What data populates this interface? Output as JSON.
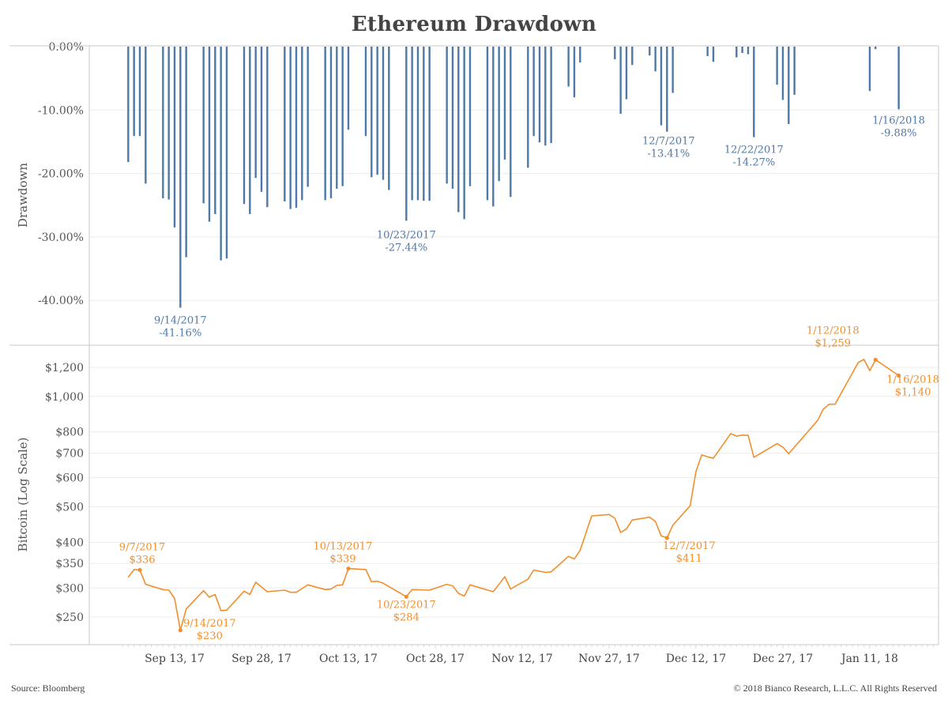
{
  "title": "Ethereum Drawdown",
  "footer": {
    "source": "Source: Bloomberg",
    "copyright": "© 2018 Bianco Research, L.L.C. All Rights Reserved"
  },
  "chart_data": [
    {
      "type": "bar",
      "ylabel": "Drawdown",
      "ylim": [
        -47,
        0
      ],
      "yticks": [
        "0.00%",
        "-10.00%",
        "-20.00%",
        "-30.00%",
        "-40.00%"
      ],
      "ytick_values": [
        0,
        -10,
        -20,
        -30,
        -40
      ],
      "color": "#4e79a7",
      "grid": true,
      "bars": [
        [
          "2017-09-05",
          -18.2
        ],
        [
          "2017-09-06",
          -14.1
        ],
        [
          "2017-09-07",
          -14.1
        ],
        [
          "2017-09-08",
          -21.6
        ],
        [
          "2017-09-11",
          -23.9
        ],
        [
          "2017-09-12",
          -24.1
        ],
        [
          "2017-09-13",
          -28.5
        ],
        [
          "2017-09-14",
          -41.16
        ],
        [
          "2017-09-15",
          -33.2
        ],
        [
          "2017-09-18",
          -24.7
        ],
        [
          "2017-09-19",
          -27.6
        ],
        [
          "2017-09-20",
          -26.4
        ],
        [
          "2017-09-21",
          -33.7
        ],
        [
          "2017-09-22",
          -33.4
        ],
        [
          "2017-09-25",
          -24.8
        ],
        [
          "2017-09-26",
          -26.4
        ],
        [
          "2017-09-27",
          -20.7
        ],
        [
          "2017-09-28",
          -22.9
        ],
        [
          "2017-09-29",
          -25.3
        ],
        [
          "2017-10-02",
          -24.4
        ],
        [
          "2017-10-03",
          -25.6
        ],
        [
          "2017-10-04",
          -25.4
        ],
        [
          "2017-10-05",
          -24.2
        ],
        [
          "2017-10-06",
          -22.1
        ],
        [
          "2017-10-09",
          -24.2
        ],
        [
          "2017-10-10",
          -23.9
        ],
        [
          "2017-10-11",
          -22.4
        ],
        [
          "2017-10-12",
          -22.0
        ],
        [
          "2017-10-13",
          -13.1
        ],
        [
          "2017-10-16",
          -14.1
        ],
        [
          "2017-10-17",
          -20.6
        ],
        [
          "2017-10-18",
          -20.2
        ],
        [
          "2017-10-19",
          -21.0
        ],
        [
          "2017-10-20",
          -22.6
        ],
        [
          "2017-10-23",
          -27.44
        ],
        [
          "2017-10-24",
          -24.2
        ],
        [
          "2017-10-25",
          -24.2
        ],
        [
          "2017-10-26",
          -24.3
        ],
        [
          "2017-10-27",
          -24.3
        ],
        [
          "2017-10-30",
          -21.6
        ],
        [
          "2017-10-31",
          -22.4
        ],
        [
          "2017-11-01",
          -26.1
        ],
        [
          "2017-11-02",
          -27.2
        ],
        [
          "2017-11-03",
          -22.0
        ],
        [
          "2017-11-06",
          -24.2
        ],
        [
          "2017-11-07",
          -25.2
        ],
        [
          "2017-11-08",
          -21.2
        ],
        [
          "2017-11-09",
          -17.8
        ],
        [
          "2017-11-10",
          -23.7
        ],
        [
          "2017-11-13",
          -19.1
        ],
        [
          "2017-11-14",
          -14.1
        ],
        [
          "2017-11-15",
          -15.1
        ],
        [
          "2017-11-16",
          -15.6
        ],
        [
          "2017-11-17",
          -15.2
        ],
        [
          "2017-11-20",
          -6.3
        ],
        [
          "2017-11-21",
          -8.0
        ],
        [
          "2017-11-22",
          -2.5
        ],
        [
          "2017-11-28",
          -2.0
        ],
        [
          "2017-11-29",
          -10.6
        ],
        [
          "2017-11-30",
          -8.3
        ],
        [
          "2017-12-01",
          -2.9
        ],
        [
          "2017-12-04",
          -1.4
        ],
        [
          "2017-12-05",
          -3.9
        ],
        [
          "2017-12-06",
          -12.4
        ],
        [
          "2017-12-07",
          -13.41
        ],
        [
          "2017-12-08",
          -7.3
        ],
        [
          "2017-12-14",
          -1.5
        ],
        [
          "2017-12-15",
          -2.4
        ],
        [
          "2017-12-19",
          -1.7
        ],
        [
          "2017-12-20",
          -1.0
        ],
        [
          "2017-12-21",
          -1.2
        ],
        [
          "2017-12-22",
          -14.27
        ],
        [
          "2017-12-26",
          -6.0
        ],
        [
          "2017-12-27",
          -8.4
        ],
        [
          "2017-12-28",
          -12.2
        ],
        [
          "2017-12-29",
          -7.6
        ],
        [
          "2018-01-11",
          -7.0
        ],
        [
          "2018-01-12",
          -0.4
        ],
        [
          "2018-01-16",
          -9.88
        ]
      ],
      "annotations": [
        {
          "date": "2017-09-14",
          "label": "9/14/2017",
          "value": "-41.16%"
        },
        {
          "date": "2017-10-23",
          "label": "10/23/2017",
          "value": "-27.44%"
        },
        {
          "date": "2017-12-07",
          "label": "12/7/2017",
          "value": "-13.41%"
        },
        {
          "date": "2017-12-22",
          "label": "12/22/2017",
          "value": "-14.27%"
        },
        {
          "date": "2018-01-16",
          "label": "1/16/2018",
          "value": "-9.88%"
        }
      ]
    },
    {
      "type": "line",
      "ylabel": "Bitcoin (Log Scale)",
      "yscale": "log",
      "ylim": [
        210,
        1372
      ],
      "yticks": [
        "$1,200",
        "$1,000",
        "$800",
        "$700",
        "$600",
        "$500",
        "$400",
        "$350",
        "$300",
        "$250"
      ],
      "ytick_values": [
        1200,
        1000,
        800,
        700,
        600,
        500,
        400,
        350,
        300,
        250
      ],
      "color": "#f28e2b",
      "grid": true,
      "xticks": [
        "Sep 13, 17",
        "Sep 28, 17",
        "Oct 13, 17",
        "Oct 28, 17",
        "Nov 12, 17",
        "Nov 27, 17",
        "Dec 12, 17",
        "Dec 27, 17",
        "Jan 11, 18"
      ],
      "xtick_dates": [
        "2017-09-13",
        "2017-09-28",
        "2017-10-13",
        "2017-10-28",
        "2017-11-12",
        "2017-11-27",
        "2017-12-12",
        "2017-12-27",
        "2018-01-11"
      ],
      "points": [
        [
          "2017-09-05",
          321
        ],
        [
          "2017-09-06",
          337
        ],
        [
          "2017-09-07",
          336
        ],
        [
          "2017-09-08",
          307
        ],
        [
          "2017-09-11",
          297
        ],
        [
          "2017-09-12",
          296
        ],
        [
          "2017-09-13",
          281
        ],
        [
          "2017-09-14",
          230
        ],
        [
          "2017-09-15",
          263
        ],
        [
          "2017-09-18",
          295
        ],
        [
          "2017-09-19",
          283
        ],
        [
          "2017-09-20",
          288
        ],
        [
          "2017-09-21",
          260
        ],
        [
          "2017-09-22",
          261
        ],
        [
          "2017-09-25",
          294
        ],
        [
          "2017-09-26",
          288
        ],
        [
          "2017-09-27",
          311
        ],
        [
          "2017-09-29",
          293
        ],
        [
          "2017-10-02",
          296
        ],
        [
          "2017-10-03",
          292
        ],
        [
          "2017-10-04",
          292
        ],
        [
          "2017-10-05",
          299
        ],
        [
          "2017-10-06",
          306
        ],
        [
          "2017-10-09",
          297
        ],
        [
          "2017-10-10",
          298
        ],
        [
          "2017-10-11",
          305
        ],
        [
          "2017-10-12",
          306
        ],
        [
          "2017-10-13",
          339
        ],
        [
          "2017-10-16",
          337
        ],
        [
          "2017-10-17",
          312
        ],
        [
          "2017-10-18",
          313
        ],
        [
          "2017-10-19",
          309
        ],
        [
          "2017-10-23",
          284
        ],
        [
          "2017-10-24",
          297
        ],
        [
          "2017-10-27",
          296
        ],
        [
          "2017-10-30",
          307
        ],
        [
          "2017-10-31",
          304
        ],
        [
          "2017-11-01",
          290
        ],
        [
          "2017-11-02",
          285
        ],
        [
          "2017-11-03",
          306
        ],
        [
          "2017-11-07",
          293
        ],
        [
          "2017-11-09",
          322
        ],
        [
          "2017-11-10",
          298
        ],
        [
          "2017-11-13",
          317
        ],
        [
          "2017-11-14",
          336
        ],
        [
          "2017-11-16",
          331
        ],
        [
          "2017-11-17",
          332
        ],
        [
          "2017-11-20",
          366
        ],
        [
          "2017-11-21",
          360
        ],
        [
          "2017-11-22",
          380
        ],
        [
          "2017-11-24",
          472
        ],
        [
          "2017-11-27",
          476
        ],
        [
          "2017-11-28",
          465
        ],
        [
          "2017-11-29",
          425
        ],
        [
          "2017-11-30",
          435
        ],
        [
          "2017-12-01",
          460
        ],
        [
          "2017-12-04",
          468
        ],
        [
          "2017-12-05",
          456
        ],
        [
          "2017-12-06",
          416
        ],
        [
          "2017-12-07",
          411
        ],
        [
          "2017-12-08",
          445
        ],
        [
          "2017-12-11",
          503
        ],
        [
          "2017-12-12",
          624
        ],
        [
          "2017-12-13",
          693
        ],
        [
          "2017-12-14",
          684
        ],
        [
          "2017-12-15",
          678
        ],
        [
          "2017-12-18",
          792
        ],
        [
          "2017-12-19",
          779
        ],
        [
          "2017-12-20",
          784
        ],
        [
          "2017-12-21",
          783
        ],
        [
          "2017-12-22",
          682
        ],
        [
          "2017-12-26",
          743
        ],
        [
          "2017-12-27",
          727
        ],
        [
          "2017-12-28",
          698
        ],
        [
          "2017-12-29",
          727
        ],
        [
          "2018-01-02",
          860
        ],
        [
          "2018-01-03",
          924
        ],
        [
          "2018-01-04",
          952
        ],
        [
          "2018-01-05",
          952
        ],
        [
          "2018-01-09",
          1237
        ],
        [
          "2018-01-10",
          1262
        ],
        [
          "2018-01-11",
          1175
        ],
        [
          "2018-01-12",
          1259
        ],
        [
          "2018-01-16",
          1140
        ]
      ],
      "annotations": [
        {
          "date": "2017-09-07",
          "label": "9/7/2017",
          "value": "$336"
        },
        {
          "date": "2017-09-14",
          "label": "9/14/2017",
          "value": "$230"
        },
        {
          "date": "2017-10-13",
          "label": "10/13/2017",
          "value": "$339"
        },
        {
          "date": "2017-10-23",
          "label": "10/23/2017",
          "value": "$284"
        },
        {
          "date": "2017-12-07",
          "label": "12/7/2017",
          "value": "$411"
        },
        {
          "date": "2018-01-12",
          "label": "1/12/2018",
          "value": "$1,259"
        },
        {
          "date": "2018-01-16",
          "label": "1/16/2018",
          "value": "$1,140"
        }
      ]
    }
  ]
}
